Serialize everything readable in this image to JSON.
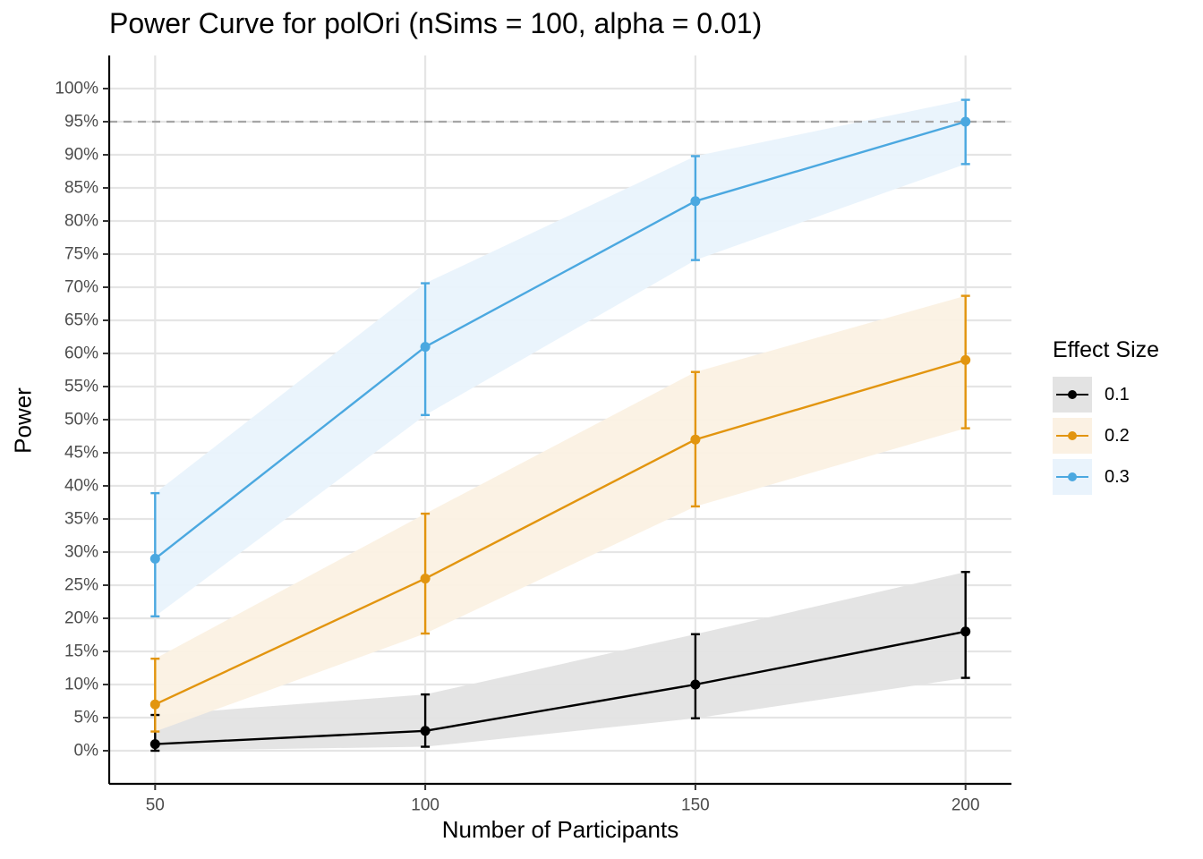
{
  "chart_data": {
    "type": "line",
    "title": "Power Curve for polOri (nSims = 100, alpha = 0.01)",
    "xlabel": "Number of Participants",
    "ylabel": "Power",
    "x": [
      50,
      100,
      150,
      200
    ],
    "x_tick_labels": [
      "50",
      "100",
      "150",
      "200"
    ],
    "xlim": [
      41.5,
      208.5
    ],
    "ylim": [
      -5,
      105
    ],
    "y_ticks": [
      0,
      5,
      10,
      15,
      20,
      25,
      30,
      35,
      40,
      45,
      50,
      55,
      60,
      65,
      70,
      75,
      80,
      85,
      90,
      95,
      100
    ],
    "y_tick_labels": [
      "0%",
      "5%",
      "10%",
      "15%",
      "20%",
      "25%",
      "30%",
      "35%",
      "40%",
      "45%",
      "50%",
      "55%",
      "60%",
      "65%",
      "70%",
      "75%",
      "80%",
      "85%",
      "90%",
      "95%",
      "100%"
    ],
    "reference_line": {
      "y": 95,
      "style": "dashed",
      "color": "#a6a6a6"
    },
    "grid": true,
    "legend": {
      "title": "Effect Size",
      "placement": "right"
    },
    "series": [
      {
        "name": "0.1",
        "color": "#000000",
        "fill": "#e3e3e3",
        "values": [
          1,
          3,
          10,
          18
        ],
        "ci_lower": [
          0.0,
          0.6,
          4.9,
          11.0
        ],
        "ci_upper": [
          5.4,
          8.5,
          17.6,
          27.0
        ]
      },
      {
        "name": "0.2",
        "color": "#e2950f",
        "fill": "#fbf1e3",
        "values": [
          7,
          26,
          47,
          59
        ],
        "ci_lower": [
          2.9,
          17.7,
          36.9,
          48.7
        ],
        "ci_upper": [
          13.9,
          35.8,
          57.2,
          68.7
        ]
      },
      {
        "name": "0.3",
        "color": "#4ba8e0",
        "fill": "#e9f3fc",
        "values": [
          29,
          61,
          83,
          95
        ],
        "ci_lower": [
          20.3,
          50.7,
          74.1,
          88.6
        ],
        "ci_upper": [
          38.9,
          70.6,
          89.8,
          98.3
        ]
      }
    ]
  }
}
